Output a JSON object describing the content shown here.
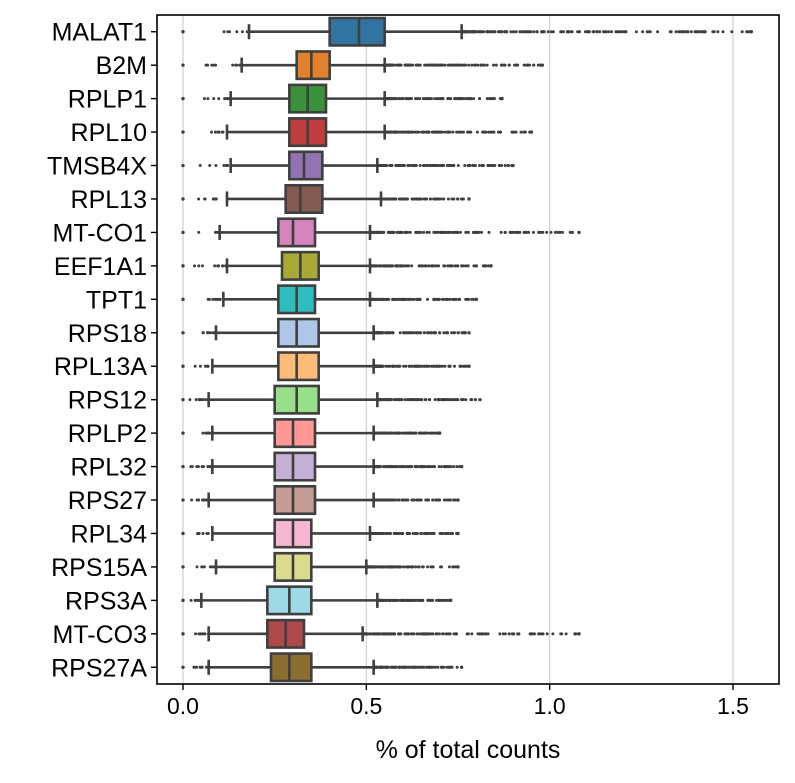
{
  "chart_data": {
    "type": "boxplot",
    "orientation": "horizontal",
    "xlabel": "% of total counts",
    "xlim": [
      -0.08,
      1.64
    ],
    "xticks": [
      0.0,
      0.5,
      1.0,
      1.5
    ],
    "xtick_labels": [
      "0.0",
      "0.5",
      "1.0",
      "1.5"
    ],
    "grid": "vertical",
    "categories": [
      "MALAT1",
      "B2M",
      "RPLP1",
      "RPL10",
      "TMSB4X",
      "RPL13",
      "MT-CO1",
      "EEF1A1",
      "TPT1",
      "RPS18",
      "RPL13A",
      "RPS12",
      "RPLP2",
      "RPL32",
      "RPS27",
      "RPL34",
      "RPS15A",
      "RPS3A",
      "MT-CO3",
      "RPS27A"
    ],
    "series": [
      {
        "category": "MALAT1",
        "color": "#3274a1",
        "whisker_low": 0.18,
        "q1": 0.4,
        "median": 0.48,
        "q3": 0.55,
        "whisker_high": 0.76,
        "outlier_max": 1.55
      },
      {
        "category": "B2M",
        "color": "#e1812c",
        "whisker_low": 0.16,
        "q1": 0.31,
        "median": 0.35,
        "q3": 0.4,
        "whisker_high": 0.55,
        "outlier_max": 0.98
      },
      {
        "category": "RPLP1",
        "color": "#3a923a",
        "whisker_low": 0.13,
        "q1": 0.29,
        "median": 0.34,
        "q3": 0.39,
        "whisker_high": 0.55,
        "outlier_max": 0.87
      },
      {
        "category": "RPL10",
        "color": "#c03d3e",
        "whisker_low": 0.12,
        "q1": 0.29,
        "median": 0.34,
        "q3": 0.39,
        "whisker_high": 0.55,
        "outlier_max": 0.95
      },
      {
        "category": "TMSB4X",
        "color": "#9372b2",
        "whisker_low": 0.13,
        "q1": 0.29,
        "median": 0.33,
        "q3": 0.38,
        "whisker_high": 0.53,
        "outlier_max": 0.9
      },
      {
        "category": "RPL13",
        "color": "#845b53",
        "whisker_low": 0.12,
        "q1": 0.28,
        "median": 0.32,
        "q3": 0.38,
        "whisker_high": 0.54,
        "outlier_max": 0.78
      },
      {
        "category": "MT-CO1",
        "color": "#d684bd",
        "whisker_low": 0.1,
        "q1": 0.26,
        "median": 0.3,
        "q3": 0.36,
        "whisker_high": 0.51,
        "outlier_max": 1.08
      },
      {
        "category": "EEF1A1",
        "color": "#a9aa35",
        "whisker_low": 0.12,
        "q1": 0.27,
        "median": 0.32,
        "q3": 0.37,
        "whisker_high": 0.51,
        "outlier_max": 0.84
      },
      {
        "category": "TPT1",
        "color": "#2ebdbe",
        "whisker_low": 0.11,
        "q1": 0.26,
        "median": 0.31,
        "q3": 0.36,
        "whisker_high": 0.51,
        "outlier_max": 0.8
      },
      {
        "category": "RPS18",
        "color": "#aec7e8",
        "whisker_low": 0.09,
        "q1": 0.26,
        "median": 0.31,
        "q3": 0.37,
        "whisker_high": 0.52,
        "outlier_max": 0.78
      },
      {
        "category": "RPL13A",
        "color": "#ffbb78",
        "whisker_low": 0.08,
        "q1": 0.26,
        "median": 0.31,
        "q3": 0.37,
        "whisker_high": 0.52,
        "outlier_max": 0.78
      },
      {
        "category": "RPS12",
        "color": "#98df8a",
        "whisker_low": 0.07,
        "q1": 0.25,
        "median": 0.31,
        "q3": 0.37,
        "whisker_high": 0.53,
        "outlier_max": 0.81
      },
      {
        "category": "RPLP2",
        "color": "#ff9896",
        "whisker_low": 0.08,
        "q1": 0.25,
        "median": 0.3,
        "q3": 0.36,
        "whisker_high": 0.52,
        "outlier_max": 0.7
      },
      {
        "category": "RPL32",
        "color": "#c5b0d5",
        "whisker_low": 0.08,
        "q1": 0.25,
        "median": 0.3,
        "q3": 0.36,
        "whisker_high": 0.52,
        "outlier_max": 0.76
      },
      {
        "category": "RPS27",
        "color": "#c49c94",
        "whisker_low": 0.07,
        "q1": 0.25,
        "median": 0.3,
        "q3": 0.36,
        "whisker_high": 0.52,
        "outlier_max": 0.75
      },
      {
        "category": "RPL34",
        "color": "#f7b6d2",
        "whisker_low": 0.08,
        "q1": 0.25,
        "median": 0.3,
        "q3": 0.35,
        "whisker_high": 0.51,
        "outlier_max": 0.75
      },
      {
        "category": "RPS15A",
        "color": "#dbdb8d",
        "whisker_low": 0.09,
        "q1": 0.25,
        "median": 0.3,
        "q3": 0.35,
        "whisker_high": 0.5,
        "outlier_max": 0.75
      },
      {
        "category": "RPS3A",
        "color": "#9edae5",
        "whisker_low": 0.05,
        "q1": 0.23,
        "median": 0.29,
        "q3": 0.35,
        "whisker_high": 0.53,
        "outlier_max": 0.73
      },
      {
        "category": "MT-CO3",
        "color": "#ad494a",
        "whisker_low": 0.07,
        "q1": 0.23,
        "median": 0.28,
        "q3": 0.33,
        "whisker_high": 0.49,
        "outlier_max": 1.08
      },
      {
        "category": "RPS27A",
        "color": "#8c6d31",
        "whisker_low": 0.07,
        "q1": 0.24,
        "median": 0.29,
        "q3": 0.35,
        "whisker_high": 0.52,
        "outlier_max": 0.76
      }
    ]
  }
}
